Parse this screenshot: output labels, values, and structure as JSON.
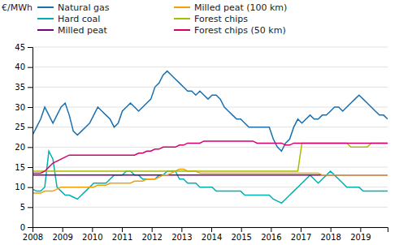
{
  "chart_data": {
    "type": "line",
    "y_label": "€/MWh",
    "x": [
      2008,
      2008.137,
      2008.274,
      2008.4109,
      2008.5479,
      2008.6849,
      2008.8219,
      2008.9588,
      2009.0958,
      2009.2328,
      2009.3698,
      2009.5067,
      2009.6437,
      2009.7807,
      2009.9177,
      2010.0547,
      2010.1916,
      2010.3286,
      2010.4656,
      2010.6026,
      2010.7395,
      2010.8765,
      2011.0135,
      2011.1505,
      2011.2874,
      2011.4244,
      2011.5614,
      2011.6984,
      2011.8354,
      2011.9723,
      2012.1093,
      2012.2463,
      2012.3833,
      2012.5202,
      2012.6572,
      2012.7942,
      2012.9312,
      2013.0681,
      2013.2051,
      2013.3421,
      2013.4791,
      2013.6161,
      2013.753,
      2013.89,
      2014.027,
      2014.164,
      2014.3009,
      2014.4379,
      2014.5749,
      2014.7119,
      2014.8489,
      2014.9858,
      2015.1228,
      2015.2598,
      2015.3968,
      2015.5337,
      2015.6707,
      2015.8077,
      2015.9447,
      2016.0816,
      2016.2186,
      2016.3556,
      2016.4926,
      2016.6296,
      2016.7665,
      2016.9035,
      2017.0405,
      2017.1775,
      2017.3144,
      2017.4514,
      2017.5884,
      2017.7254,
      2017.8623,
      2017.9993,
      2018.1363,
      2018.2733,
      2018.4103,
      2018.5472,
      2018.6842,
      2018.8212,
      2018.9582,
      2019.0951,
      2019.2321,
      2019.3691,
      2019.5061,
      2019.643,
      2019.78,
      2019.917
    ],
    "series": [
      {
        "name": "Natural gas",
        "color": "#1a6faf",
        "values": [
          23,
          25,
          27,
          30,
          28,
          26,
          28,
          30,
          31,
          28,
          24,
          23,
          24,
          25,
          26,
          28,
          30,
          29,
          28,
          27,
          25,
          26,
          29,
          30,
          31,
          30,
          29,
          30,
          31,
          32,
          35,
          36,
          38,
          39,
          38,
          37,
          36,
          35,
          34,
          34,
          33,
          34,
          33,
          32,
          33,
          33,
          32,
          30,
          29,
          28,
          27,
          27,
          26,
          25,
          25,
          25,
          25,
          25,
          25,
          22,
          20,
          19,
          21,
          22,
          25,
          27,
          26,
          27,
          28,
          27,
          27,
          28,
          28,
          29,
          30,
          30,
          29,
          30,
          31,
          32,
          33,
          32,
          31,
          30,
          29,
          28,
          28,
          27
        ]
      },
      {
        "name": "Hard coal",
        "color": "#00b0b0",
        "values": [
          9.5,
          9,
          9,
          10,
          19,
          17,
          10,
          9,
          8,
          8,
          7.5,
          7,
          8,
          9,
          10,
          11,
          11,
          11,
          11,
          12,
          13,
          13,
          13,
          14,
          14,
          13,
          13,
          12,
          12,
          12,
          12,
          13,
          13,
          14,
          14,
          14,
          12,
          12,
          11,
          11,
          11,
          10,
          10,
          10,
          10,
          9,
          9,
          9,
          9,
          9,
          9,
          9,
          8,
          8,
          8,
          8,
          8,
          8,
          8,
          7,
          6.5,
          6,
          7,
          8,
          9,
          10,
          11,
          12,
          13,
          12,
          11,
          12,
          13,
          14,
          13,
          12,
          11,
          10,
          10,
          10,
          10,
          9,
          9,
          9,
          9,
          9,
          9,
          9
        ]
      },
      {
        "name": "Milled peat",
        "color": "#7b007b",
        "values": [
          13,
          13,
          13,
          13,
          13,
          13,
          13,
          13,
          13,
          13,
          13,
          13,
          13,
          13,
          13,
          13,
          13,
          13,
          13,
          13,
          13,
          13,
          13,
          13,
          13,
          13,
          13,
          13,
          13,
          13,
          13,
          13,
          13,
          13,
          13,
          13,
          13,
          13,
          13,
          13,
          13,
          13,
          13,
          13,
          13,
          13,
          13,
          13,
          13,
          13,
          13,
          13,
          13,
          13,
          13,
          13,
          13,
          13,
          13,
          13,
          13,
          13,
          13,
          13,
          13,
          13,
          13,
          13,
          13,
          13,
          13,
          13,
          13,
          13,
          13,
          13,
          13,
          13,
          13,
          13,
          13,
          13,
          13,
          13,
          13,
          13,
          13,
          13
        ]
      },
      {
        "name": "Milled peat (100 km)",
        "color": "#f0a000",
        "values": [
          8.5,
          8.5,
          8.5,
          9,
          9,
          9,
          9.5,
          10,
          10,
          10,
          10,
          10,
          10,
          10,
          10,
          10,
          10.5,
          10.5,
          10.5,
          11,
          11,
          11,
          11,
          11,
          11,
          11.5,
          11.5,
          11.5,
          12,
          12,
          12,
          12.5,
          13,
          13,
          13.5,
          14,
          14.5,
          14.5,
          14,
          14,
          14,
          13.5,
          13.5,
          13.5,
          13.5,
          13.5,
          13.5,
          13.5,
          13.5,
          13.5,
          13.5,
          13.5,
          13.5,
          13.5,
          13.5,
          13.5,
          13.5,
          13.5,
          13.5,
          13.5,
          13.5,
          13.5,
          13.5,
          13.5,
          13.5,
          13.5,
          13.5,
          13.5,
          13.5,
          13.5,
          13.5,
          13,
          13,
          13,
          13,
          13,
          13,
          13,
          13,
          13,
          13,
          13,
          13,
          13,
          13,
          13,
          13,
          13
        ]
      },
      {
        "name": "Forest chips",
        "color": "#aabc00",
        "values": [
          14,
          14,
          14,
          14,
          14,
          14,
          14,
          14,
          14,
          14,
          14,
          14,
          14,
          14,
          14,
          14,
          14,
          14,
          14,
          14,
          14,
          14,
          14,
          14,
          14,
          14,
          14,
          14,
          14,
          14,
          14,
          14,
          14,
          14,
          14,
          14,
          14,
          14,
          14,
          14,
          14,
          14,
          14,
          14,
          14,
          14,
          14,
          14,
          14,
          14,
          14,
          14,
          14,
          14,
          14,
          14,
          14,
          14,
          14,
          14,
          14,
          14,
          14,
          14,
          14,
          14,
          21,
          21,
          21,
          21,
          21,
          21,
          21,
          21,
          21,
          21,
          21,
          21,
          20,
          20,
          20,
          20,
          20,
          21,
          21,
          21,
          21,
          21
        ]
      },
      {
        "name": "Forest chips (50 km)",
        "color": "#d4006e",
        "values": [
          13.5,
          13.5,
          13.5,
          14,
          15,
          16,
          16.5,
          17,
          17.5,
          18,
          18,
          18,
          18,
          18,
          18,
          18,
          18,
          18,
          18,
          18,
          18,
          18,
          18,
          18,
          18,
          18,
          18.5,
          18.5,
          19,
          19,
          19.5,
          19.5,
          20,
          20,
          20,
          20,
          20.5,
          20.5,
          21,
          21,
          21,
          21,
          21.5,
          21.5,
          21.5,
          21.5,
          21.5,
          21.5,
          21.5,
          21.5,
          21.5,
          21.5,
          21.5,
          21.5,
          21.5,
          21,
          21,
          21,
          21,
          21,
          21,
          21,
          20.5,
          20.5,
          21,
          21,
          21,
          21,
          21,
          21,
          21,
          21,
          21,
          21,
          21,
          21,
          21,
          21,
          21,
          21,
          21,
          21,
          21,
          21,
          21,
          21,
          21,
          21
        ]
      }
    ],
    "xlim": [
      2008,
      2019.917
    ],
    "xticks": [
      2008,
      2009,
      2010,
      2011,
      2012,
      2013,
      2014,
      2015,
      2016,
      2017,
      2018,
      2019
    ],
    "ylim": [
      0,
      45
    ],
    "yticks": [
      0,
      5,
      10,
      15,
      20,
      25,
      30,
      35,
      40,
      45
    ],
    "grid": "y",
    "legend": "top-left"
  }
}
